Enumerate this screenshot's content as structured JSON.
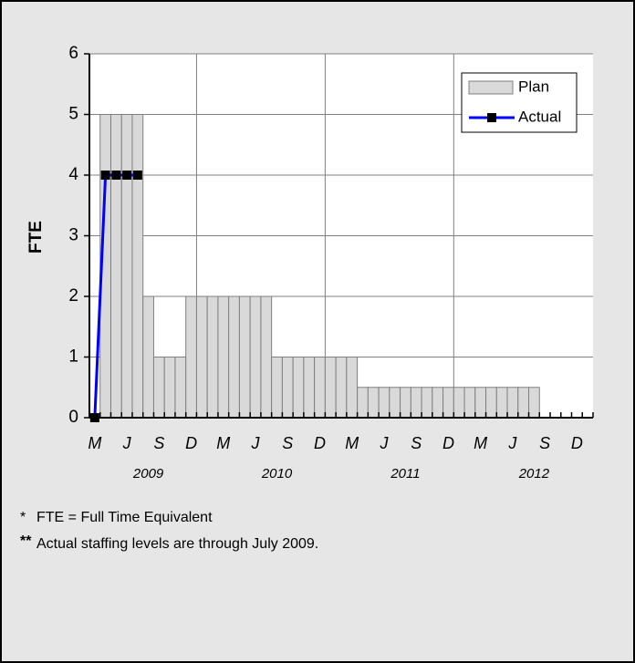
{
  "chart_data": {
    "type": "bar",
    "ylabel": "FTE",
    "categories": [
      "M",
      null,
      null,
      "J",
      null,
      null,
      "S",
      null,
      null,
      "D",
      null,
      null,
      "M",
      null,
      null,
      "J",
      null,
      null,
      "S",
      null,
      null,
      "D",
      null,
      null,
      "M",
      null,
      null,
      "J",
      null,
      null,
      "S",
      null,
      null,
      "D",
      null,
      null,
      "M",
      null,
      null,
      "J",
      null,
      null,
      "S",
      null,
      null,
      "D",
      null
    ],
    "years": [
      "2009",
      "2010",
      "2011",
      "2012"
    ],
    "series": [
      {
        "name": "Plan",
        "type": "bar",
        "color": "#d9d9d9",
        "values": [
          null,
          5,
          5,
          5,
          5,
          2,
          1,
          1,
          1,
          2,
          2,
          2,
          2,
          2,
          2,
          2,
          2,
          1,
          1,
          1,
          1,
          1,
          1,
          1,
          1,
          0.5,
          0.5,
          0.5,
          0.5,
          0.5,
          0.5,
          0.5,
          0.5,
          0.5,
          0.5,
          0.5,
          0.5,
          0.5,
          0.5,
          0.5,
          0.5,
          0.5,
          null,
          null,
          null,
          null,
          null
        ]
      },
      {
        "name": "Actual",
        "type": "line",
        "color": "#0000ff",
        "values": [
          0,
          4,
          4,
          4,
          4,
          null,
          null,
          null,
          null,
          null,
          null,
          null,
          null,
          null,
          null,
          null,
          null,
          null,
          null,
          null,
          null,
          null,
          null,
          null,
          null,
          null,
          null,
          null,
          null,
          null,
          null,
          null,
          null,
          null,
          null,
          null,
          null,
          null,
          null,
          null,
          null,
          null,
          null,
          null,
          null,
          null,
          null
        ]
      }
    ],
    "ylim": [
      0,
      6
    ],
    "yticks": [
      0,
      1,
      2,
      3,
      4,
      5,
      6
    ],
    "grid": true,
    "legend": "top-right",
    "notes": [
      {
        "marker": "*",
        "text": "FTE = Full Time Equivalent"
      },
      {
        "marker": "**",
        "text": "Actual staffing levels are through July 2009."
      }
    ]
  }
}
